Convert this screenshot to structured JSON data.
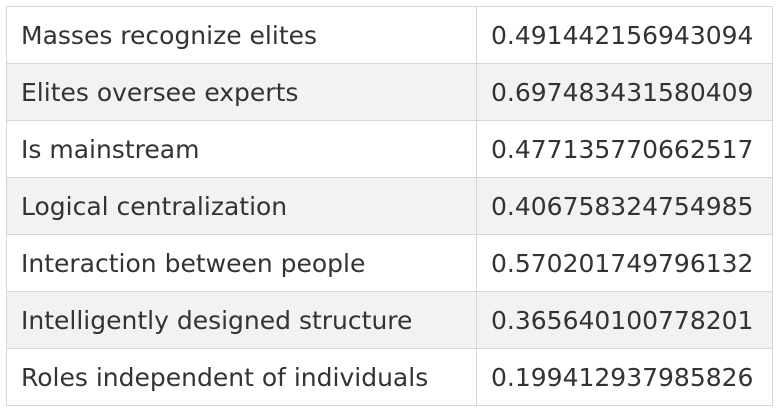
{
  "table": {
    "rows": [
      [
        "Masses recognize elites",
        "0.491442156943094"
      ],
      [
        "Elites oversee experts",
        "0.697483431580409"
      ],
      [
        "Is mainstream",
        "0.477135770662517"
      ],
      [
        "Logical centralization",
        "0.406758324754985"
      ],
      [
        "Interaction between people",
        "0.570201749796132"
      ],
      [
        "Intelligently designed structure",
        "0.365640100778201"
      ],
      [
        "Roles independent of individuals",
        "0.199412937985826"
      ]
    ]
  }
}
